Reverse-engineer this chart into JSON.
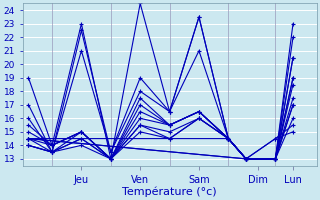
{
  "xlabel": "Température (°c)",
  "bg_color": "#cce8f0",
  "grid_color": "#ffffff",
  "line_color": "#0000bb",
  "marker": "+",
  "ylim_min": 12.5,
  "ylim_max": 24.5,
  "yticks": [
    13,
    14,
    15,
    16,
    17,
    18,
    19,
    20,
    21,
    22,
    23,
    24
  ],
  "xlim_min": 0.0,
  "xlim_max": 5.0,
  "day_tick_x": [
    1.0,
    2.0,
    3.0,
    4.0,
    4.6
  ],
  "day_labels": [
    "Jeu",
    "Ven",
    "Sam",
    "Dim",
    "Lun"
  ],
  "vline_x": [
    0.5,
    1.5,
    2.5,
    3.5,
    4.3
  ],
  "lines": [
    [
      0.1,
      19.0,
      0.5,
      14.0,
      1.0,
      23.0,
      1.5,
      13.0,
      2.0,
      24.5,
      2.5,
      16.5,
      3.0,
      23.5,
      3.5,
      14.5,
      3.8,
      13.0,
      4.3,
      13.0,
      4.6,
      23.0
    ],
    [
      0.1,
      17.0,
      0.5,
      13.5,
      1.0,
      22.5,
      1.5,
      13.5,
      2.0,
      19.0,
      2.5,
      16.5,
      3.0,
      23.5,
      3.5,
      14.5,
      3.8,
      13.0,
      4.3,
      13.0,
      4.6,
      20.5
    ],
    [
      0.1,
      16.0,
      0.5,
      13.5,
      1.0,
      21.0,
      1.5,
      13.5,
      2.0,
      18.0,
      2.5,
      16.5,
      3.0,
      21.0,
      3.5,
      14.5,
      3.8,
      13.0,
      4.3,
      13.0,
      4.6,
      19.0
    ],
    [
      0.1,
      15.5,
      0.5,
      14.0,
      1.0,
      15.0,
      1.5,
      13.0,
      2.0,
      17.5,
      2.5,
      15.5,
      3.0,
      16.5,
      3.5,
      14.5,
      3.8,
      13.0,
      4.3,
      13.0,
      4.6,
      18.5
    ],
    [
      0.1,
      15.0,
      0.5,
      14.0,
      1.0,
      15.0,
      1.5,
      13.0,
      2.0,
      17.0,
      2.5,
      15.5,
      3.0,
      16.5,
      3.5,
      14.5,
      3.8,
      13.0,
      4.3,
      13.0,
      4.6,
      17.5
    ],
    [
      0.1,
      14.5,
      0.5,
      14.0,
      1.0,
      15.0,
      1.5,
      13.0,
      2.0,
      16.5,
      2.5,
      15.5,
      3.0,
      16.5,
      3.5,
      14.5,
      3.8,
      13.0,
      4.3,
      13.0,
      4.6,
      17.0
    ],
    [
      0.1,
      14.5,
      0.5,
      13.5,
      1.0,
      15.0,
      1.5,
      13.0,
      2.0,
      16.0,
      2.5,
      15.5,
      3.0,
      16.5,
      3.5,
      14.5,
      3.8,
      13.0,
      4.3,
      13.0,
      4.6,
      17.0
    ],
    [
      0.1,
      14.0,
      0.5,
      13.5,
      1.0,
      14.5,
      1.5,
      13.0,
      2.0,
      15.5,
      2.5,
      15.0,
      3.0,
      16.0,
      3.5,
      14.5,
      3.8,
      13.0,
      4.3,
      13.0,
      4.6,
      16.0
    ],
    [
      0.1,
      14.0,
      0.5,
      13.5,
      1.0,
      14.5,
      1.5,
      13.0,
      2.0,
      15.5,
      2.5,
      14.5,
      3.0,
      16.0,
      3.5,
      14.5,
      3.8,
      13.0,
      4.3,
      14.5,
      4.6,
      15.5
    ],
    [
      0.1,
      14.0,
      0.5,
      13.5,
      1.0,
      14.0,
      1.5,
      13.0,
      2.0,
      15.0,
      2.5,
      14.5,
      3.0,
      16.0,
      3.5,
      14.5,
      3.8,
      13.0,
      4.3,
      14.5,
      4.6,
      15.0
    ],
    [
      0.1,
      14.5,
      3.5,
      14.5,
      3.8,
      13.0,
      4.3,
      13.0,
      4.6,
      22.0
    ],
    [
      0.1,
      14.5,
      3.8,
      13.0,
      4.3,
      13.0,
      4.6,
      20.5
    ],
    [
      0.1,
      14.5,
      3.8,
      13.0,
      4.3,
      13.0,
      4.6,
      19.0
    ]
  ]
}
